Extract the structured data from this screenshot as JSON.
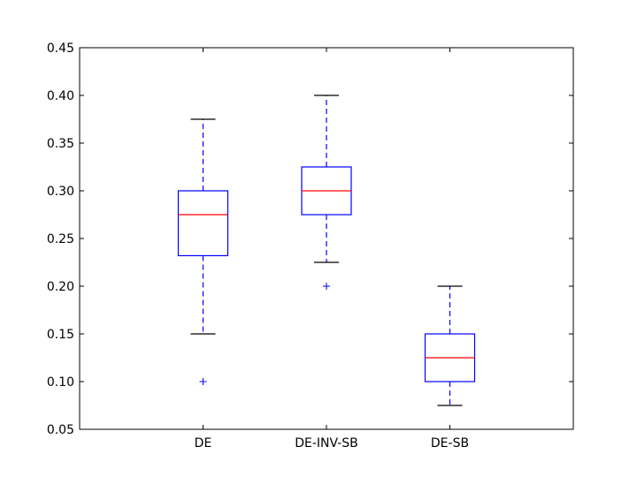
{
  "chart_data": {
    "type": "box",
    "title": "",
    "xlabel": "",
    "ylabel": "",
    "ylim": [
      0.05,
      0.45
    ],
    "yticks": [
      "0.05",
      "0.10",
      "0.15",
      "0.20",
      "0.25",
      "0.30",
      "0.35",
      "0.40",
      "0.45"
    ],
    "categories": [
      "DE",
      "DE-INV-SB",
      "DE-SB"
    ],
    "boxes": [
      {
        "category": "DE",
        "whisker_low": 0.15,
        "q1": 0.232,
        "median": 0.275,
        "q3": 0.3,
        "whisker_high": 0.375,
        "outliers": [
          0.1
        ]
      },
      {
        "category": "DE-INV-SB",
        "whisker_low": 0.225,
        "q1": 0.275,
        "median": 0.3,
        "q3": 0.325,
        "whisker_high": 0.4,
        "outliers": [
          0.2
        ]
      },
      {
        "category": "DE-SB",
        "whisker_low": 0.075,
        "q1": 0.1,
        "median": 0.125,
        "q3": 0.15,
        "whisker_high": 0.2,
        "outliers": []
      }
    ],
    "grid": false,
    "colors": {
      "box": "#0000ff",
      "median": "#ff0000",
      "cap": "#000000",
      "outlier": "#0000ff"
    }
  }
}
